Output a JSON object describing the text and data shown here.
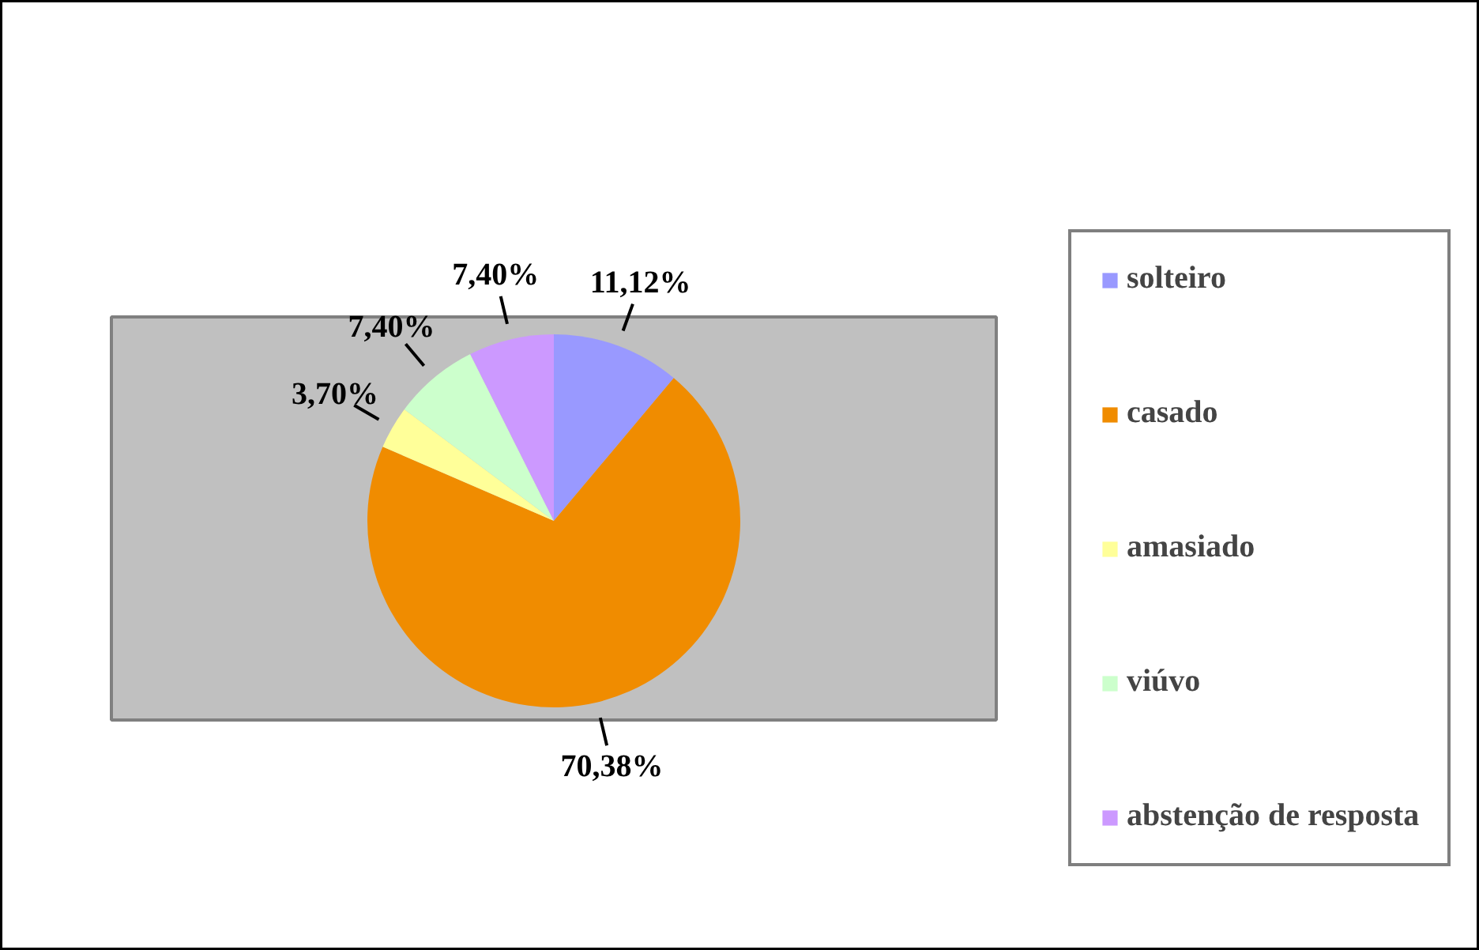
{
  "chart_data": {
    "type": "pie",
    "categories": [
      "solteiro",
      "casado",
      "amasiado",
      "viúvo",
      "abstenção de resposta"
    ],
    "values": [
      11.12,
      70.38,
      3.7,
      7.4,
      7.4
    ],
    "colors": [
      "#9999ff",
      "#f08c00",
      "#ffff99",
      "#ccffcc",
      "#cc99ff"
    ],
    "value_labels": [
      "11,12%",
      "70,38%",
      "3,70%",
      "7,40%",
      "7,40%"
    ],
    "legend": "right"
  }
}
